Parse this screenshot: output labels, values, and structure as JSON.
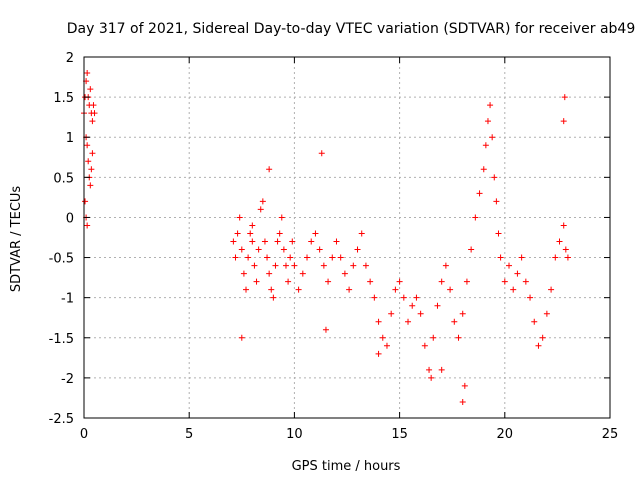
{
  "chart_data": {
    "type": "scatter",
    "title": "Day 317 of 2021, Sidereal Day-to-day VTEC variation (SDTVAR) for receiver ab49",
    "xlabel": "GPS time / hours",
    "ylabel": "SDTVAR / TECUs",
    "xlim": [
      0,
      25
    ],
    "ylim": [
      -2.5,
      2
    ],
    "xticks": [
      0,
      5,
      10,
      15,
      20,
      25
    ],
    "yticks": [
      -2.5,
      -2,
      -1.5,
      -1,
      -0.5,
      0,
      0.5,
      1,
      1.5,
      2
    ],
    "grid": true,
    "marker": "+",
    "color": "#ff0000",
    "series": [
      {
        "name": "SDTVAR",
        "x": [
          0.0,
          0.05,
          0.1,
          0.15,
          0.2,
          0.25,
          0.3,
          0.35,
          0.4,
          0.45,
          0.5,
          0.1,
          0.15,
          0.2,
          0.25,
          0.3,
          0.35,
          0.4,
          0.05,
          0.1,
          0.15,
          7.1,
          7.2,
          7.3,
          7.4,
          7.5,
          7.6,
          7.7,
          7.8,
          7.9,
          8.0,
          8.1,
          8.2,
          8.3,
          8.4,
          8.5,
          8.6,
          8.7,
          8.8,
          8.9,
          9.0,
          9.1,
          9.2,
          9.3,
          9.4,
          9.5,
          9.6,
          9.7,
          9.8,
          9.9,
          10.0,
          10.2,
          10.4,
          10.6,
          10.8,
          11.0,
          11.2,
          11.4,
          11.6,
          11.8,
          12.0,
          12.2,
          12.4,
          12.6,
          12.8,
          13.0,
          13.2,
          13.4,
          13.6,
          13.8,
          14.0,
          14.2,
          14.4,
          14.6,
          14.8,
          15.0,
          15.2,
          15.4,
          15.6,
          15.8,
          16.0,
          16.2,
          16.4,
          16.6,
          16.8,
          17.0,
          17.2,
          17.4,
          17.6,
          17.8,
          18.0,
          18.2,
          18.4,
          18.6,
          18.8,
          19.0,
          19.1,
          19.2,
          19.3,
          19.4,
          19.5,
          19.6,
          19.7,
          19.8,
          20.0,
          20.2,
          20.4,
          20.6,
          20.8,
          21.0,
          21.2,
          21.4,
          21.6,
          21.8,
          22.0,
          22.2,
          22.4,
          22.6,
          22.8,
          22.9,
          23.0,
          7.5,
          8.0,
          8.8,
          11.3,
          11.5,
          14.0,
          16.5,
          17.0,
          18.0,
          18.1,
          22.8,
          22.85
        ],
        "y": [
          1.3,
          1.5,
          1.7,
          1.8,
          1.5,
          1.4,
          1.6,
          1.3,
          1.2,
          1.4,
          1.3,
          1.0,
          0.9,
          0.7,
          0.5,
          0.4,
          0.6,
          0.8,
          0.2,
          0.0,
          -0.1,
          -0.3,
          -0.5,
          -0.2,
          0.0,
          -0.4,
          -0.7,
          -0.9,
          -0.5,
          -0.2,
          -0.3,
          -0.6,
          -0.8,
          -0.4,
          0.1,
          0.2,
          -0.3,
          -0.5,
          -0.7,
          -0.9,
          -1.0,
          -0.6,
          -0.3,
          -0.2,
          0.0,
          -0.4,
          -0.6,
          -0.8,
          -0.5,
          -0.3,
          -0.6,
          -0.9,
          -0.7,
          -0.5,
          -0.3,
          -0.2,
          -0.4,
          -0.6,
          -0.8,
          -0.5,
          -0.3,
          -0.5,
          -0.7,
          -0.9,
          -0.6,
          -0.4,
          -0.2,
          -0.6,
          -0.8,
          -1.0,
          -1.3,
          -1.5,
          -1.6,
          -1.2,
          -0.9,
          -0.8,
          -1.0,
          -1.3,
          -1.1,
          -1.0,
          -1.2,
          -1.6,
          -1.9,
          -1.5,
          -1.1,
          -0.8,
          -0.6,
          -0.9,
          -1.3,
          -1.5,
          -1.2,
          -0.8,
          -0.4,
          0.0,
          0.3,
          0.6,
          0.9,
          1.2,
          1.4,
          1.0,
          0.5,
          0.2,
          -0.2,
          -0.5,
          -0.8,
          -0.6,
          -0.9,
          -0.7,
          -0.5,
          -0.8,
          -1.0,
          -1.3,
          -1.6,
          -1.5,
          -1.2,
          -0.9,
          -0.5,
          -0.3,
          -0.1,
          -0.4,
          -0.5,
          -1.5,
          -0.1,
          0.6,
          0.8,
          -1.4,
          -1.7,
          -2.0,
          -1.9,
          -2.3,
          -2.1,
          1.2,
          1.5
        ]
      }
    ]
  }
}
